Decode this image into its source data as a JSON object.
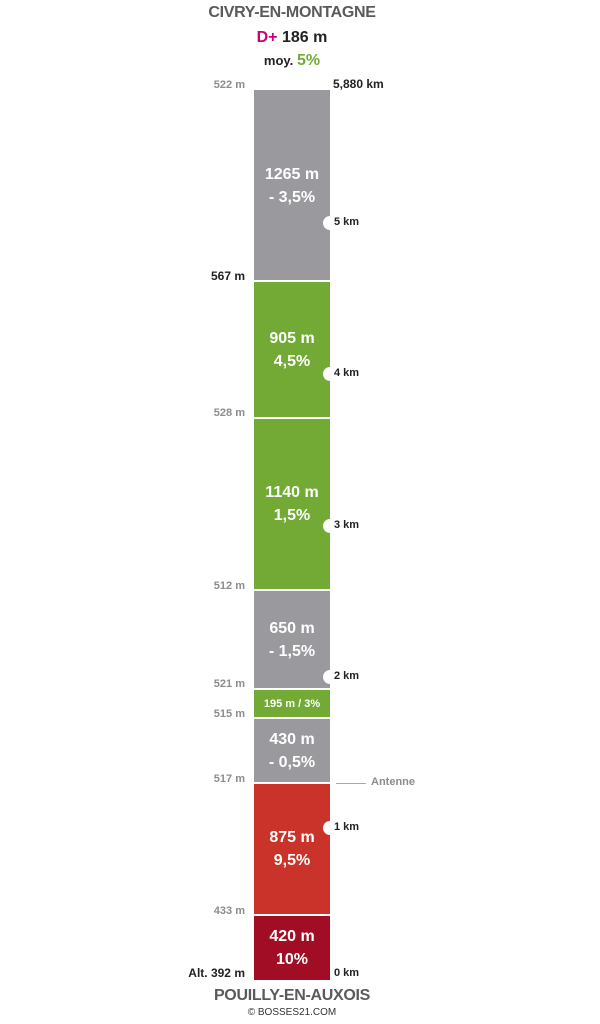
{
  "header": {
    "start_name": "CIVRY-EN-MONTAGNE",
    "dplus_label": "D+",
    "dplus_value": "186 m",
    "avg_label": "moy.",
    "avg_value": "5%"
  },
  "footer": {
    "end_name": "POUILLY-EN-AUXOIS",
    "copyright": "© BOSSES21.COM"
  },
  "colors": {
    "descent": "#9a999d",
    "gentle": "#72aa35",
    "steep": "#ca3329",
    "very_steep": "#a10d24",
    "magenta": "#c8007a"
  },
  "segments": [
    {
      "line1": "1265 m",
      "line2": "- 3,5%",
      "color": "descent"
    },
    {
      "line1": "905 m",
      "line2": "4,5%",
      "color": "gentle"
    },
    {
      "line1": "1140 m",
      "line2": "1,5%",
      "color": "gentle"
    },
    {
      "line1": "650 m",
      "line2": "- 1,5%",
      "color": "descent"
    },
    {
      "line1": "195 m / 3%",
      "line2": "",
      "color": "gentle"
    },
    {
      "line1": "430 m",
      "line2": "- 0,5%",
      "color": "descent"
    },
    {
      "line1": "875 m",
      "line2": "9,5%",
      "color": "steep"
    },
    {
      "line1": "420 m",
      "line2": "10%",
      "color": "very_steep"
    }
  ],
  "altitudes": [
    "522 m",
    "567 m",
    "528 m",
    "512 m",
    "521 m",
    "515 m",
    "517 m",
    "433 m",
    "Alt. 392 m"
  ],
  "km_marks": [
    "5,880 km",
    "5 km",
    "4 km",
    "3 km",
    "2 km",
    "1 km",
    "0 km"
  ],
  "annotation": "Antenne"
}
